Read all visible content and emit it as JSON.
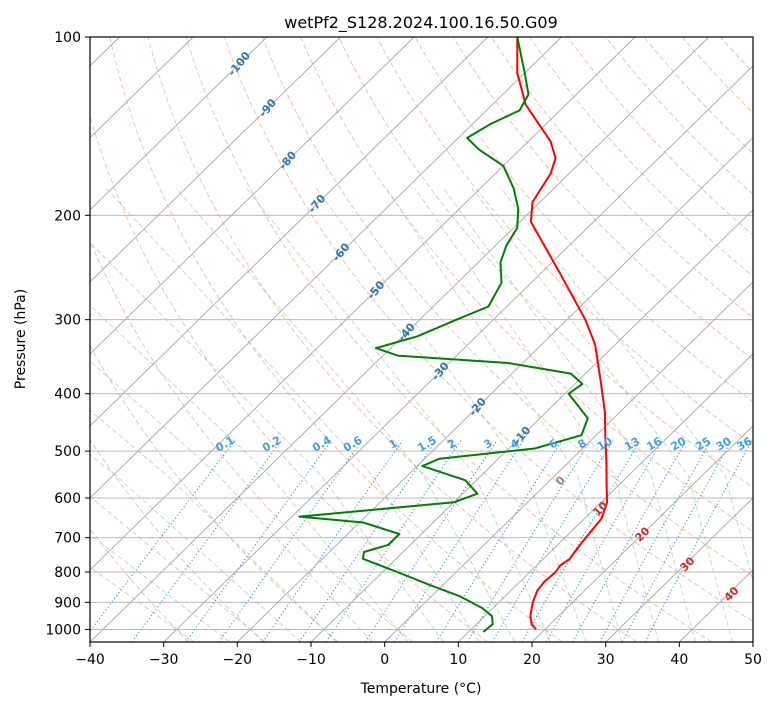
{
  "chart_data": {
    "type": "skew-t",
    "title": "wetPf2_S128.2024.100.16.50.G09",
    "xlabel": "Temperature (°C)",
    "ylabel": "Pressure (hPa)",
    "xlim": [
      -40,
      50
    ],
    "ylim": [
      1050,
      100
    ],
    "y_scale": "log",
    "x_ticks": [
      -40,
      -30,
      -20,
      -10,
      0,
      10,
      20,
      30,
      40,
      50
    ],
    "y_ticks": [
      100,
      200,
      300,
      400,
      500,
      600,
      700,
      800,
      900,
      1000
    ],
    "grid": true,
    "series": [
      {
        "name": "",
        "color": "#ff0000",
        "points": [
          {
            "p": 1000,
            "t": 18.8
          },
          {
            "p": 980,
            "t": 17.5
          },
          {
            "p": 950,
            "t": 16.2
          },
          {
            "p": 900,
            "t": 14.6
          },
          {
            "p": 860,
            "t": 13.6
          },
          {
            "p": 830,
            "t": 13.3
          },
          {
            "p": 800,
            "t": 13.5
          },
          {
            "p": 780,
            "t": 13.2
          },
          {
            "p": 760,
            "t": 13.6
          },
          {
            "p": 740,
            "t": 13.3
          },
          {
            "p": 700,
            "t": 12.8
          },
          {
            "p": 650,
            "t": 12.3
          },
          {
            "p": 610,
            "t": 10.8
          },
          {
            "p": 570,
            "t": 8.3
          },
          {
            "p": 520,
            "t": 5.0
          },
          {
            "p": 480,
            "t": 2.0
          },
          {
            "p": 430,
            "t": -2.0
          },
          {
            "p": 380,
            "t": -7.0
          },
          {
            "p": 330,
            "t": -12.8
          },
          {
            "p": 300,
            "t": -17.5
          },
          {
            "p": 250,
            "t": -27.5
          },
          {
            "p": 205,
            "t": -38.5
          },
          {
            "p": 190,
            "t": -41.0
          },
          {
            "p": 170,
            "t": -42.5
          },
          {
            "p": 160,
            "t": -44.0
          },
          {
            "p": 150,
            "t": -47.0
          },
          {
            "p": 130,
            "t": -55.5
          },
          {
            "p": 115,
            "t": -61.0
          },
          {
            "p": 100,
            "t": -66.0
          }
        ]
      },
      {
        "name": "",
        "color": "#008000",
        "points": [
          {
            "p": 1010,
            "t": 12.0
          },
          {
            "p": 980,
            "t": 12.2
          },
          {
            "p": 950,
            "t": 11.0
          },
          {
            "p": 920,
            "t": 8.5
          },
          {
            "p": 880,
            "t": 4.0
          },
          {
            "p": 840,
            "t": -2.0
          },
          {
            "p": 800,
            "t": -8.0
          },
          {
            "p": 760,
            "t": -14.5
          },
          {
            "p": 740,
            "t": -15.3
          },
          {
            "p": 720,
            "t": -13.0
          },
          {
            "p": 690,
            "t": -13.0
          },
          {
            "p": 660,
            "t": -19.5
          },
          {
            "p": 645,
            "t": -29.0
          },
          {
            "p": 630,
            "t": -21.0
          },
          {
            "p": 610,
            "t": -10.0
          },
          {
            "p": 590,
            "t": -8.0
          },
          {
            "p": 560,
            "t": -11.5
          },
          {
            "p": 530,
            "t": -19.3
          },
          {
            "p": 515,
            "t": -18.0
          },
          {
            "p": 495,
            "t": -6.5
          },
          {
            "p": 470,
            "t": -2.0
          },
          {
            "p": 440,
            "t": -3.5
          },
          {
            "p": 400,
            "t": -9.5
          },
          {
            "p": 385,
            "t": -9.0
          },
          {
            "p": 370,
            "t": -12.0
          },
          {
            "p": 355,
            "t": -22.0
          },
          {
            "p": 345,
            "t": -38.0
          },
          {
            "p": 335,
            "t": -42.0
          },
          {
            "p": 320,
            "t": -38.0
          },
          {
            "p": 300,
            "t": -35.0
          },
          {
            "p": 285,
            "t": -32.5
          },
          {
            "p": 260,
            "t": -34.0
          },
          {
            "p": 240,
            "t": -37.0
          },
          {
            "p": 225,
            "t": -38.5
          },
          {
            "p": 210,
            "t": -39.5
          },
          {
            "p": 195,
            "t": -42.0
          },
          {
            "p": 180,
            "t": -45.5
          },
          {
            "p": 165,
            "t": -50.0
          },
          {
            "p": 155,
            "t": -55.5
          },
          {
            "p": 148,
            "t": -58.8
          },
          {
            "p": 140,
            "t": -57.5
          },
          {
            "p": 133,
            "t": -55.5
          },
          {
            "p": 125,
            "t": -56.5
          },
          {
            "p": 115,
            "t": -60.0
          },
          {
            "p": 100,
            "t": -66.0
          }
        ]
      }
    ],
    "dry_adiabats_c": [
      -100,
      -90,
      -80,
      -70,
      -60,
      -50,
      -40,
      -30,
      -20,
      -10
    ],
    "mixing_ratio_labels": [
      "0.1",
      "0.2",
      "0.4",
      "0.6",
      "1",
      "1.5",
      "2",
      "3",
      "4",
      "6",
      "8",
      "10",
      "13",
      "16",
      "20",
      "25",
      "30",
      "36"
    ],
    "moist_adiabat_labels": [
      "0",
      "10",
      "20",
      "30",
      "40"
    ]
  }
}
